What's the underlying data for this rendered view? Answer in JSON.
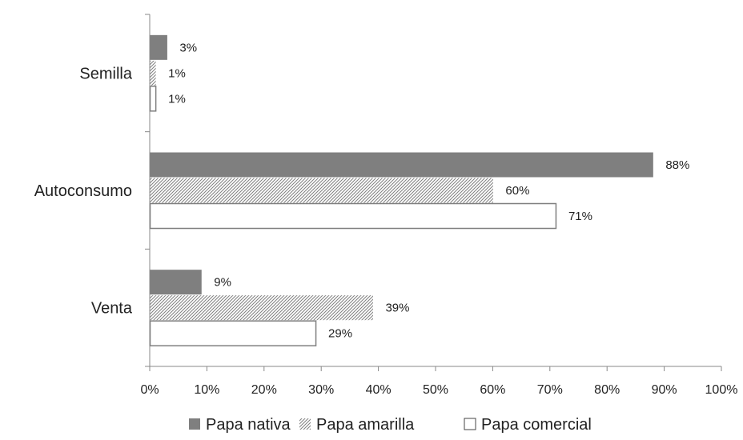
{
  "chart_data": {
    "type": "bar",
    "orientation": "horizontal",
    "categories": [
      "Semilla",
      "Autoconsumo",
      "Venta"
    ],
    "series": [
      {
        "name": "Papa nativa",
        "values": [
          3,
          88,
          9
        ],
        "labels": [
          "3%",
          "88%",
          "9%"
        ],
        "style": "solid",
        "color": "#7f7f7f"
      },
      {
        "name": "Papa amarilla",
        "values": [
          1,
          60,
          39
        ],
        "labels": [
          "1%",
          "60%",
          "39%"
        ],
        "style": "hatched",
        "color": "#7f7f7f"
      },
      {
        "name": "Papa comercial",
        "values": [
          1,
          71,
          29
        ],
        "labels": [
          "1%",
          "71%",
          "29%"
        ],
        "style": "outline",
        "color": "#7f7f7f"
      }
    ],
    "xlim": [
      0,
      100
    ],
    "xticks": [
      "0%",
      "10%",
      "20%",
      "30%",
      "40%",
      "50%",
      "60%",
      "70%",
      "80%",
      "90%",
      "100%"
    ],
    "grid": false,
    "legend_position": "bottom"
  }
}
